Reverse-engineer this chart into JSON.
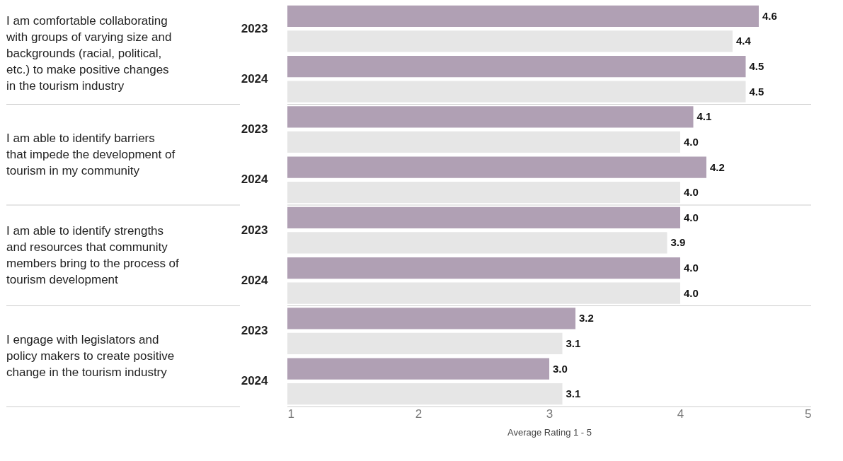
{
  "chart_data": {
    "type": "bar",
    "orientation": "horizontal",
    "xlabel": "Average Rating 1 - 5",
    "categories": [
      "2023",
      "2024",
      "2023",
      "2024",
      "2023",
      "2024",
      "2023",
      "2024"
    ],
    "series": [
      {
        "color": "#b0a0b4",
        "values": [
          4.6,
          4.5,
          4.1,
          4.2,
          4.0,
          4.0,
          3.2,
          3.0
        ],
        "value_labels": [
          "4.6",
          "4.5",
          "4.1",
          "4.2",
          "4.0",
          "4.0",
          "3.2",
          "3.0"
        ]
      },
      {
        "color": "#e6e6e6",
        "values": [
          4.4,
          4.5,
          4.0,
          4.0,
          3.9,
          4.0,
          3.1,
          3.1
        ],
        "value_labels": [
          "4.4",
          "4.5",
          "4.0",
          "4.0",
          "3.9",
          "4.0",
          "3.1",
          "3.1"
        ]
      }
    ],
    "xlim": [
      1,
      5
    ],
    "xticks": [
      1,
      2,
      3,
      4,
      5
    ],
    "data_labels": true,
    "grid": false,
    "legend": false,
    "annotations": [
      "I am comfortable collaborating with groups of varying size and backgrounds (racial, political, etc.) to make positive changes in the tourism industry",
      "I am able to identify barriers that impede the development of tourism in my community",
      "I am able to identify strengths and resources that community members bring to the process of tourism development",
      "I engage with legislators and policy makers to create positive change in the tourism industry"
    ]
  }
}
